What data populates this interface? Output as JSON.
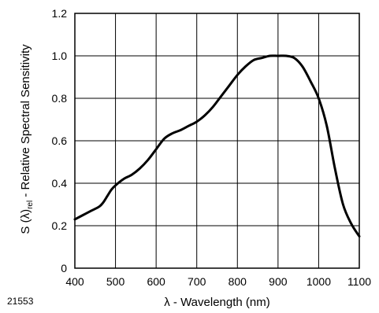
{
  "figure_id": "21553",
  "chart_data": {
    "type": "line",
    "title": "",
    "xlabel": "λ - Wavelength (nm)",
    "ylabel": {
      "prefix": "S (λ)",
      "subscript": "rel",
      "suffix": " - Relative Spectral Sensitivity"
    },
    "xlim": [
      400,
      1100
    ],
    "ylim": [
      0,
      1.2
    ],
    "x_ticks": [
      400,
      500,
      600,
      700,
      800,
      900,
      1000,
      1100
    ],
    "x_tick_labels": [
      "400",
      "500",
      "600",
      "700",
      "800",
      "900",
      "1000",
      "1100"
    ],
    "y_ticks": [
      0,
      0.2,
      0.4,
      0.6,
      0.8,
      1.0,
      1.2
    ],
    "y_tick_labels": [
      "0",
      "0.2",
      "0.4",
      "0.6",
      "0.8",
      "1.0",
      "1.2"
    ],
    "grid": true,
    "legend": "none",
    "series": [
      {
        "x": [
          400,
          420,
          440,
          460,
          470,
          480,
          490,
          500,
          520,
          540,
          560,
          580,
          600,
          620,
          640,
          660,
          680,
          700,
          720,
          740,
          760,
          780,
          800,
          820,
          840,
          860,
          880,
          900,
          920,
          940,
          960,
          980,
          1000,
          1020,
          1040,
          1060,
          1080,
          1100
        ],
        "y": [
          0.23,
          0.25,
          0.27,
          0.29,
          0.31,
          0.34,
          0.37,
          0.39,
          0.42,
          0.44,
          0.47,
          0.51,
          0.56,
          0.61,
          0.635,
          0.65,
          0.67,
          0.69,
          0.72,
          0.76,
          0.81,
          0.86,
          0.91,
          0.95,
          0.98,
          0.99,
          1.0,
          1.0,
          1.0,
          0.99,
          0.95,
          0.88,
          0.8,
          0.67,
          0.47,
          0.3,
          0.21,
          0.15
        ],
        "color": "#000000"
      }
    ]
  }
}
